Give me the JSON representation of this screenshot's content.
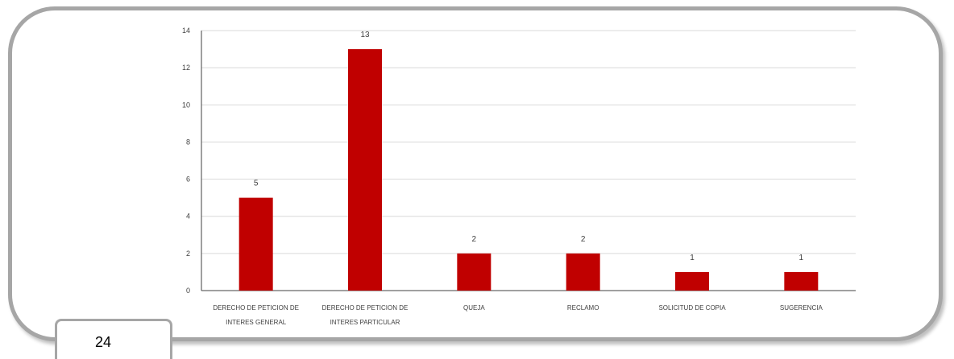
{
  "chart_data": {
    "type": "bar",
    "categories": [
      [
        "DERECHO DE PETICION DE",
        "INTERES GENERAL"
      ],
      [
        "DERECHO DE PETICION DE",
        "INTERES PARTICULAR"
      ],
      [
        "QUEJA"
      ],
      [
        "RECLAMO"
      ],
      [
        "SOLICITUD DE COPIA"
      ],
      [
        "SUGERENCIA"
      ]
    ],
    "values": [
      5,
      13,
      2,
      2,
      1,
      1
    ],
    "data_labels": [
      "5",
      "13",
      "2",
      "2",
      "1",
      "1"
    ],
    "ylim": [
      0,
      14
    ],
    "yticks": [
      0,
      2,
      4,
      6,
      8,
      10,
      12,
      14
    ],
    "grid": true,
    "legend": "none",
    "title": "",
    "xlabel": "",
    "ylabel": "",
    "bar_color": "#c00000",
    "grid_color": "#d9d9d9",
    "axis_color": "#404040"
  },
  "page_number": "24"
}
